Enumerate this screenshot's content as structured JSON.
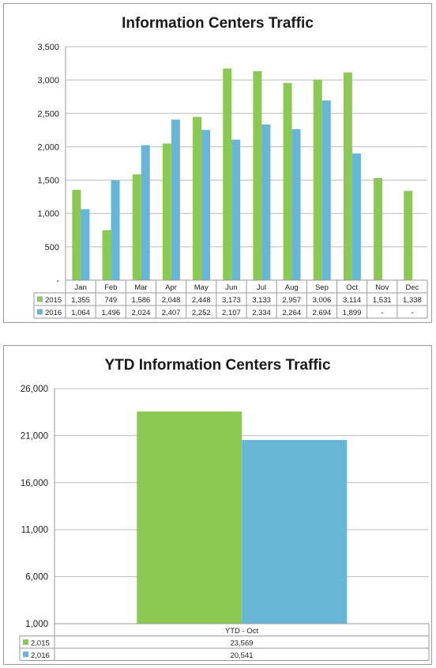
{
  "chart_data": [
    {
      "type": "bar",
      "title": "Information Centers Traffic",
      "categories": [
        "Jan",
        "Feb",
        "Mar",
        "Apr",
        "May",
        "Jun",
        "Jul",
        "Aug",
        "Sep",
        "Oct",
        "Nov",
        "Dec"
      ],
      "series": [
        {
          "name": "2015",
          "color": "#8cc854",
          "values": [
            1355,
            749,
            1586,
            2048,
            2448,
            3173,
            3133,
            2957,
            3006,
            3114,
            1531,
            1338
          ],
          "labels": [
            "1,355",
            "749",
            "1,586",
            "2,048",
            "2,448",
            "3,173",
            "3,133",
            "2,957",
            "3,006",
            "3,114",
            "1,531",
            "1,338"
          ]
        },
        {
          "name": "2016",
          "color": "#67b6d8",
          "values": [
            1064,
            1496,
            2024,
            2407,
            2252,
            2107,
            2334,
            2264,
            2694,
            1899,
            null,
            null
          ],
          "labels": [
            "1,064",
            "1,496",
            "2,024",
            "2,407",
            "2,252",
            "2,107",
            "2,334",
            "2,264",
            "2,694",
            "1,899",
            "-",
            "-"
          ]
        }
      ],
      "ylim": [
        0,
        3500
      ],
      "yticks": [
        0,
        500,
        1000,
        1500,
        2000,
        2500,
        3000,
        3500
      ],
      "ytick_labels": [
        "-",
        "500",
        "1,000",
        "1,500",
        "2,000",
        "2,500",
        "3,000",
        "3,500"
      ],
      "grid": true,
      "legend": "data table"
    },
    {
      "type": "bar",
      "title": "YTD Information Centers Traffic",
      "categories": [
        "YTD - Oct"
      ],
      "series": [
        {
          "name": "2,015",
          "color": "#8cc854",
          "values": [
            23569
          ],
          "labels": [
            "23,569"
          ]
        },
        {
          "name": "2,016",
          "color": "#67b6d8",
          "values": [
            20541
          ],
          "labels": [
            "20,541"
          ]
        }
      ],
      "ylim": [
        1000,
        26000
      ],
      "yticks": [
        1000,
        6000,
        11000,
        16000,
        21000,
        26000
      ],
      "ytick_labels": [
        "1,000",
        "6,000",
        "11,000",
        "16,000",
        "21,000",
        "26,000"
      ],
      "grid": true,
      "legend": "data table"
    }
  ]
}
